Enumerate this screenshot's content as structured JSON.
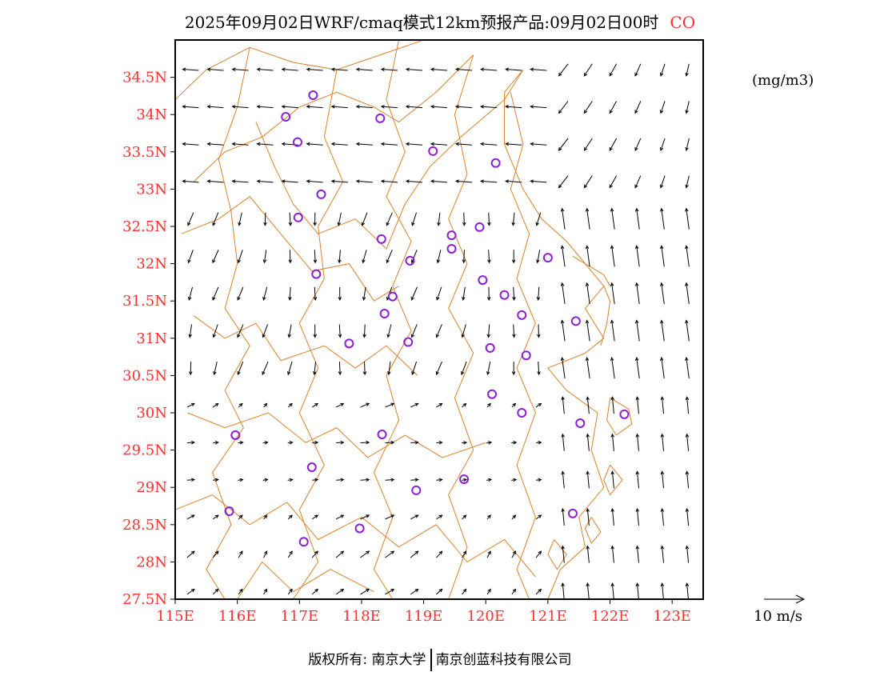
{
  "title": {
    "main": "2025年09月02日WRF/cmaq模式12km预报产品:09月02日00时",
    "species": "CO"
  },
  "unit": "(mg/m3)",
  "wind_scale_label": "10 m/s",
  "copyright": {
    "left": "版权所有: 南京大学",
    "right": "南京创蓝科技有限公司"
  },
  "colors": {
    "axis_label": "#ff3030",
    "boundary": "#d9822b",
    "station_marker": "#8a1fd6",
    "arrow": "#000000"
  },
  "map_data": {
    "lon_range": [
      115.0,
      123.5
    ],
    "lat_range": [
      27.5,
      35.0
    ],
    "x_ticks": [
      "115E",
      "116E",
      "117E",
      "118E",
      "119E",
      "120E",
      "121E",
      "122E",
      "123E"
    ],
    "y_ticks": [
      "27.5N",
      "28N",
      "28.5N",
      "29N",
      "29.5N",
      "30N",
      "30.5N",
      "31N",
      "31.5N",
      "32N",
      "32.5N",
      "33N",
      "33.5N",
      "34N",
      "34.5N"
    ],
    "stations": [
      [
        117.22,
        34.26
      ],
      [
        116.78,
        33.97
      ],
      [
        118.3,
        33.95
      ],
      [
        116.97,
        33.63
      ],
      [
        119.15,
        33.51
      ],
      [
        120.16,
        33.35
      ],
      [
        117.35,
        32.93
      ],
      [
        116.98,
        32.62
      ],
      [
        119.9,
        32.49
      ],
      [
        118.32,
        32.33
      ],
      [
        119.45,
        32.38
      ],
      [
        119.45,
        32.2
      ],
      [
        118.78,
        32.04
      ],
      [
        121.0,
        32.08
      ],
      [
        117.27,
        31.86
      ],
      [
        119.95,
        31.78
      ],
      [
        118.5,
        31.56
      ],
      [
        120.3,
        31.58
      ],
      [
        118.37,
        31.33
      ],
      [
        120.58,
        31.31
      ],
      [
        121.45,
        31.23
      ],
      [
        117.8,
        30.93
      ],
      [
        118.75,
        30.95
      ],
      [
        120.07,
        30.87
      ],
      [
        120.65,
        30.77
      ],
      [
        120.1,
        30.25
      ],
      [
        120.58,
        30.0
      ],
      [
        121.52,
        29.86
      ],
      [
        122.23,
        29.98
      ],
      [
        115.97,
        29.7
      ],
      [
        118.33,
        29.71
      ],
      [
        117.2,
        29.27
      ],
      [
        118.88,
        28.96
      ],
      [
        119.65,
        29.11
      ],
      [
        115.87,
        28.68
      ],
      [
        121.4,
        28.65
      ],
      [
        117.97,
        28.45
      ],
      [
        117.07,
        28.27
      ]
    ]
  }
}
